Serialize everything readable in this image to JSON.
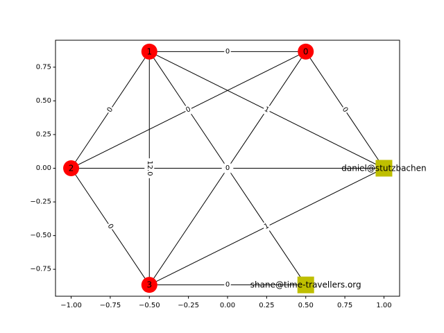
{
  "chart_data": {
    "type": "network",
    "xlim": [
      -1.1,
      1.1
    ],
    "ylim": [
      -0.95,
      0.95
    ],
    "x_ticks": [
      -1.0,
      -0.75,
      -0.5,
      -0.25,
      0.0,
      0.25,
      0.5,
      0.75,
      1.0
    ],
    "x_tick_labels": [
      "−1.00",
      "−0.75",
      "−0.50",
      "−0.25",
      "0.00",
      "0.25",
      "0.50",
      "0.75",
      "1.00"
    ],
    "y_ticks": [
      -0.75,
      -0.5,
      -0.25,
      0.0,
      0.25,
      0.5,
      0.75
    ],
    "y_tick_labels": [
      "−0.75",
      "−0.50",
      "−0.25",
      "0.00",
      "0.25",
      "0.50",
      "0.75"
    ],
    "grid": false,
    "colors": {
      "node_round": "#ff0000",
      "node_square": "#bfbf00",
      "edge": "#000000"
    },
    "nodes": [
      {
        "id": "n0",
        "label": "0",
        "shape": "circle",
        "x": 0.5,
        "y": 0.866
      },
      {
        "id": "n1",
        "label": "1",
        "shape": "circle",
        "x": -0.5,
        "y": 0.866
      },
      {
        "id": "n2",
        "label": "2",
        "shape": "circle",
        "x": -1.0,
        "y": 0.0
      },
      {
        "id": "n3",
        "label": "3",
        "shape": "circle",
        "x": -0.5,
        "y": -0.866
      },
      {
        "id": "daniel",
        "label": "daniel@stutzbachen",
        "shape": "square",
        "x": 1.0,
        "y": 0.0
      },
      {
        "id": "shane",
        "label": "shane@time-travellers.org",
        "shape": "square",
        "x": 0.5,
        "y": -0.866
      }
    ],
    "edges": [
      {
        "source": "n1",
        "target": "n0",
        "label": "0"
      },
      {
        "source": "n1",
        "target": "n2",
        "label": "0"
      },
      {
        "source": "n1",
        "target": "n3",
        "label": "12.0"
      },
      {
        "source": "n1",
        "target": "daniel",
        "label": "1"
      },
      {
        "source": "n1",
        "target": "shane",
        "label": "0"
      },
      {
        "source": "n0",
        "target": "n2",
        "label": "0"
      },
      {
        "source": "n0",
        "target": "n3",
        "label": "1"
      },
      {
        "source": "n0",
        "target": "daniel",
        "label": "0"
      },
      {
        "source": "n2",
        "target": "n3",
        "label": "0"
      },
      {
        "source": "n2",
        "target": "daniel",
        "label": "0"
      },
      {
        "source": "n3",
        "target": "daniel",
        "label": "1"
      },
      {
        "source": "n3",
        "target": "shane",
        "label": "0"
      }
    ]
  }
}
